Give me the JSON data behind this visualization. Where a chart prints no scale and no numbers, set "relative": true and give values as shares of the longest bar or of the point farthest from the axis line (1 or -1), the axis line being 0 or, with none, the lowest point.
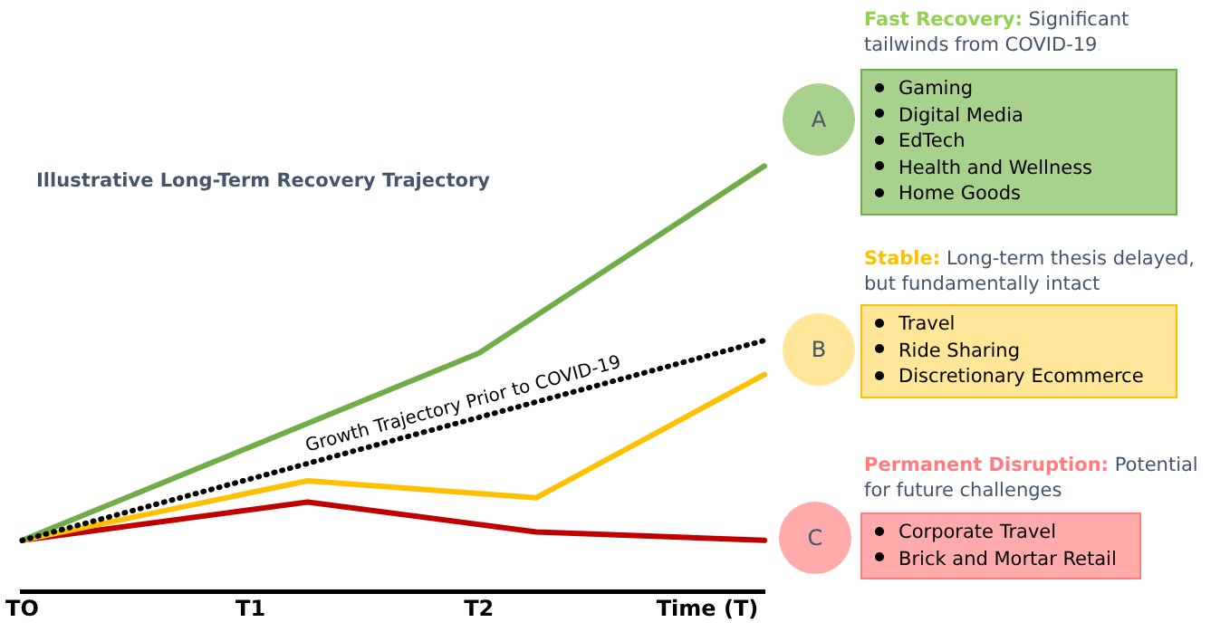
{
  "chart_data": {
    "type": "line",
    "title": "Illustrative Long-Term Recovery Trajectory",
    "relative": true,
    "categories": [
      "TO",
      null,
      null,
      null,
      "T1",
      null,
      null,
      null,
      "T2",
      null,
      null,
      null,
      "Time (T)",
      null
    ],
    "series": [
      {
        "color": "#70ad47",
        "values": [
          0.12,
          null,
          null,
          null,
          null,
          null,
          null,
          null,
          0.56,
          null,
          null,
          null,
          null,
          1
        ]
      },
      {
        "name": "Growth Trajectory Prior to COVID-19",
        "color": "#000000",
        "line_style": "dotted",
        "values": [
          0.12,
          null,
          null,
          null,
          null,
          null,
          null,
          null,
          null,
          null,
          null,
          null,
          null,
          0.59
        ]
      },
      {
        "color": "#ffc000",
        "values": [
          0.12,
          null,
          null,
          null,
          null,
          0.26,
          null,
          null,
          null,
          0.22,
          null,
          null,
          null,
          0.51
        ]
      },
      {
        "color": "#c00000",
        "values": [
          0.12,
          null,
          null,
          null,
          null,
          0.21,
          null,
          null,
          null,
          0.14,
          null,
          null,
          null,
          0.12
        ]
      }
    ],
    "annotations": [
      "A",
      "Fast Recovery:",
      "Significant tailwinds from COVID-19",
      "Gaming",
      "Digital Media",
      "EdTech",
      "Health and Wellness",
      "Home Goods",
      "B",
      "Stable:",
      "Long-term thesis delayed, but fundamentally intact",
      "Travel",
      "Ride Sharing",
      "Discretionary Ecommerce",
      "C",
      "Permanent Disruption:",
      "Potential for future challenges",
      "Corporate Travel",
      "Brick and Mortar Retail"
    ],
    "grid": false,
    "legend": false,
    "marker": "none",
    "line_style": "solid"
  }
}
